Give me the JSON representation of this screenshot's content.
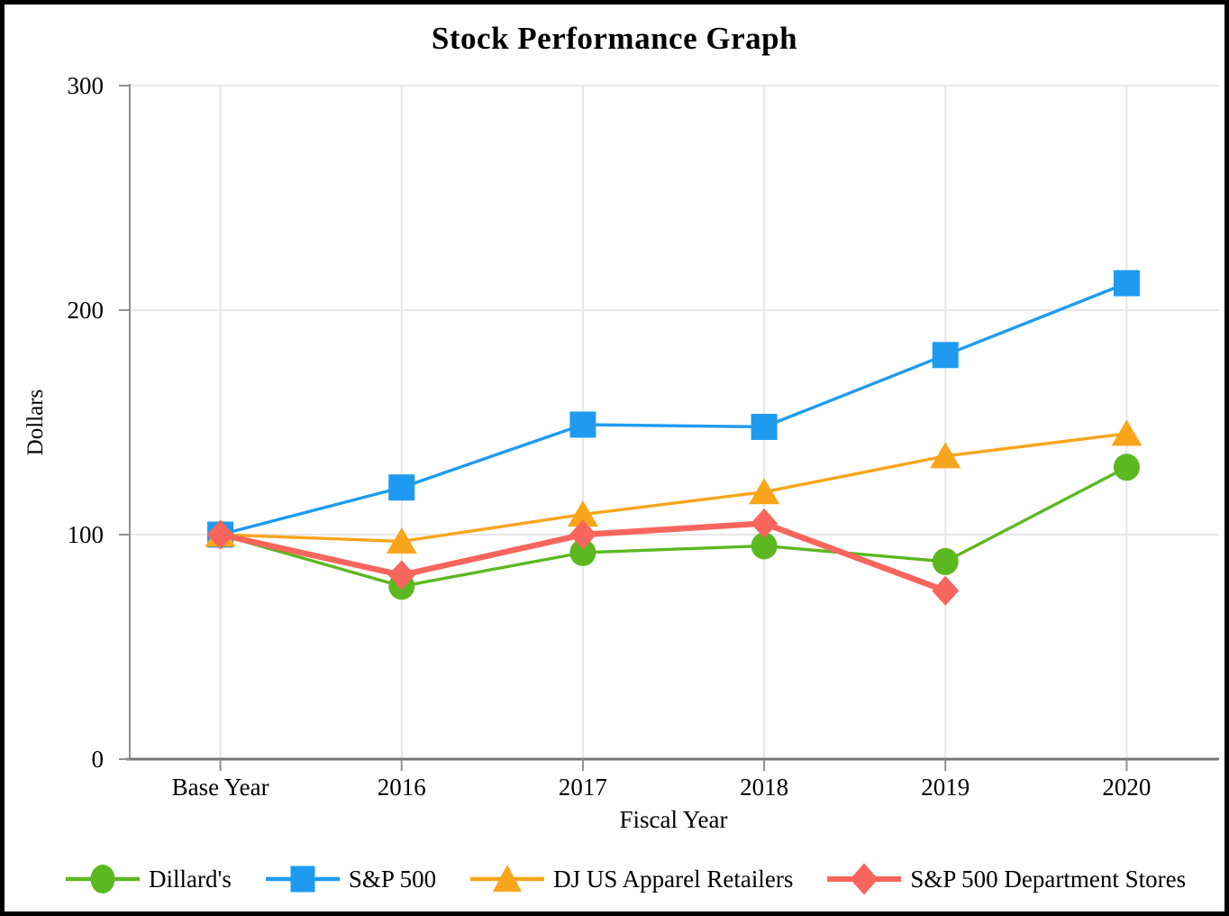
{
  "chart_data": {
    "type": "line",
    "title": "Stock Performance Graph",
    "xlabel": "Fiscal Year",
    "ylabel": "Dollars",
    "categories": [
      "Base Year",
      "2016",
      "2017",
      "2018",
      "2019",
      "2020"
    ],
    "yticks": [
      0,
      100,
      200,
      300
    ],
    "ylim": [
      0,
      300
    ],
    "grid": true,
    "legend_position": "bottom",
    "series": [
      {
        "name": "Dillard's",
        "marker": "circle",
        "color": "#5cb821",
        "line_width": 3.4,
        "values": [
          100,
          77,
          92,
          95,
          88,
          130
        ]
      },
      {
        "name": "S&P 500",
        "marker": "square",
        "color": "#1e9bf0",
        "line_width": 3.4,
        "values": [
          100,
          121,
          149,
          148,
          180,
          212
        ]
      },
      {
        "name": "DJ US Apparel Retailers",
        "marker": "triangle",
        "color": "#f8a51b",
        "line_width": 3.4,
        "values": [
          100,
          97,
          109,
          119,
          135,
          145
        ]
      },
      {
        "name": "S&P 500 Department Stores",
        "marker": "diamond",
        "color": "#f8655c",
        "line_width": 6.5,
        "values": [
          100,
          82,
          100,
          105,
          75,
          null
        ]
      }
    ],
    "axis_colors": {
      "spine": "#8f8f8f",
      "grid": "#e7e7e7",
      "tick_text": "#000000"
    }
  }
}
